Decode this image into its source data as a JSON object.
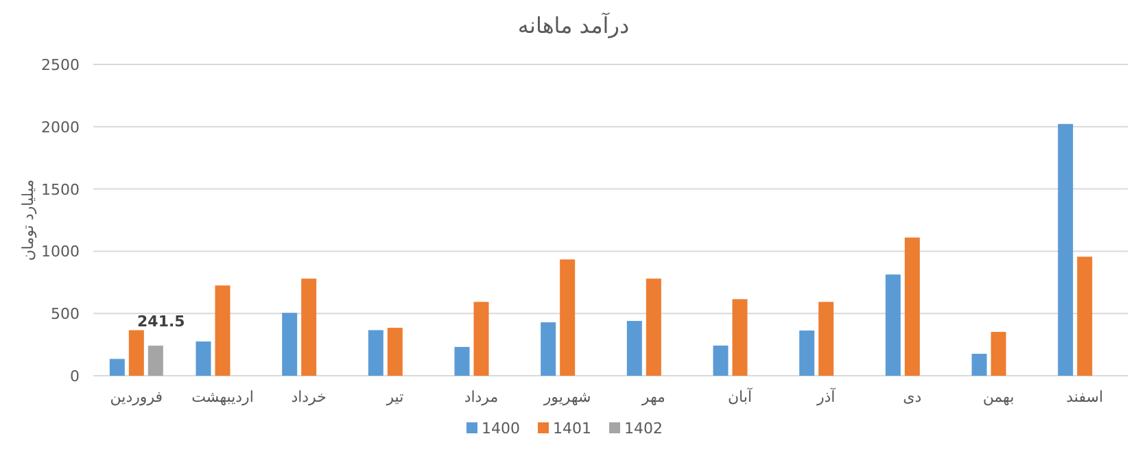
{
  "chart_data": {
    "type": "bar",
    "title": "درآمد ماهانه",
    "ylabel": "میلیارد تومان",
    "categories": [
      "فروردین",
      "اردیبهشت",
      "خرداد",
      "تیر",
      "مرداد",
      "شهریور",
      "مهر",
      "آبان",
      "آذر",
      "دی",
      "بهمن",
      "اسفند"
    ],
    "series": [
      {
        "name": "1400",
        "color": "#5b9bd5",
        "values": [
          135,
          275,
          505,
          366,
          231,
          429,
          440,
          242,
          363,
          813,
          176,
          2022
        ]
      },
      {
        "name": "1401",
        "color": "#ed7d31",
        "values": [
          366,
          725,
          780,
          385,
          593,
          934,
          780,
          615,
          593,
          1110,
          352,
          956
        ]
      },
      {
        "name": "1402",
        "color": "#a5a5a5",
        "values": [
          241.5,
          null,
          null,
          null,
          null,
          null,
          null,
          null,
          null,
          null,
          null,
          null
        ],
        "value_labels": [
          "241.5",
          null,
          null,
          null,
          null,
          null,
          null,
          null,
          null,
          null,
          null,
          null
        ]
      }
    ],
    "ylim": [
      0,
      2500
    ],
    "yticks": [
      0,
      500,
      1000,
      1500,
      2000,
      2500
    ],
    "grid": "y",
    "legend": "bottom"
  }
}
